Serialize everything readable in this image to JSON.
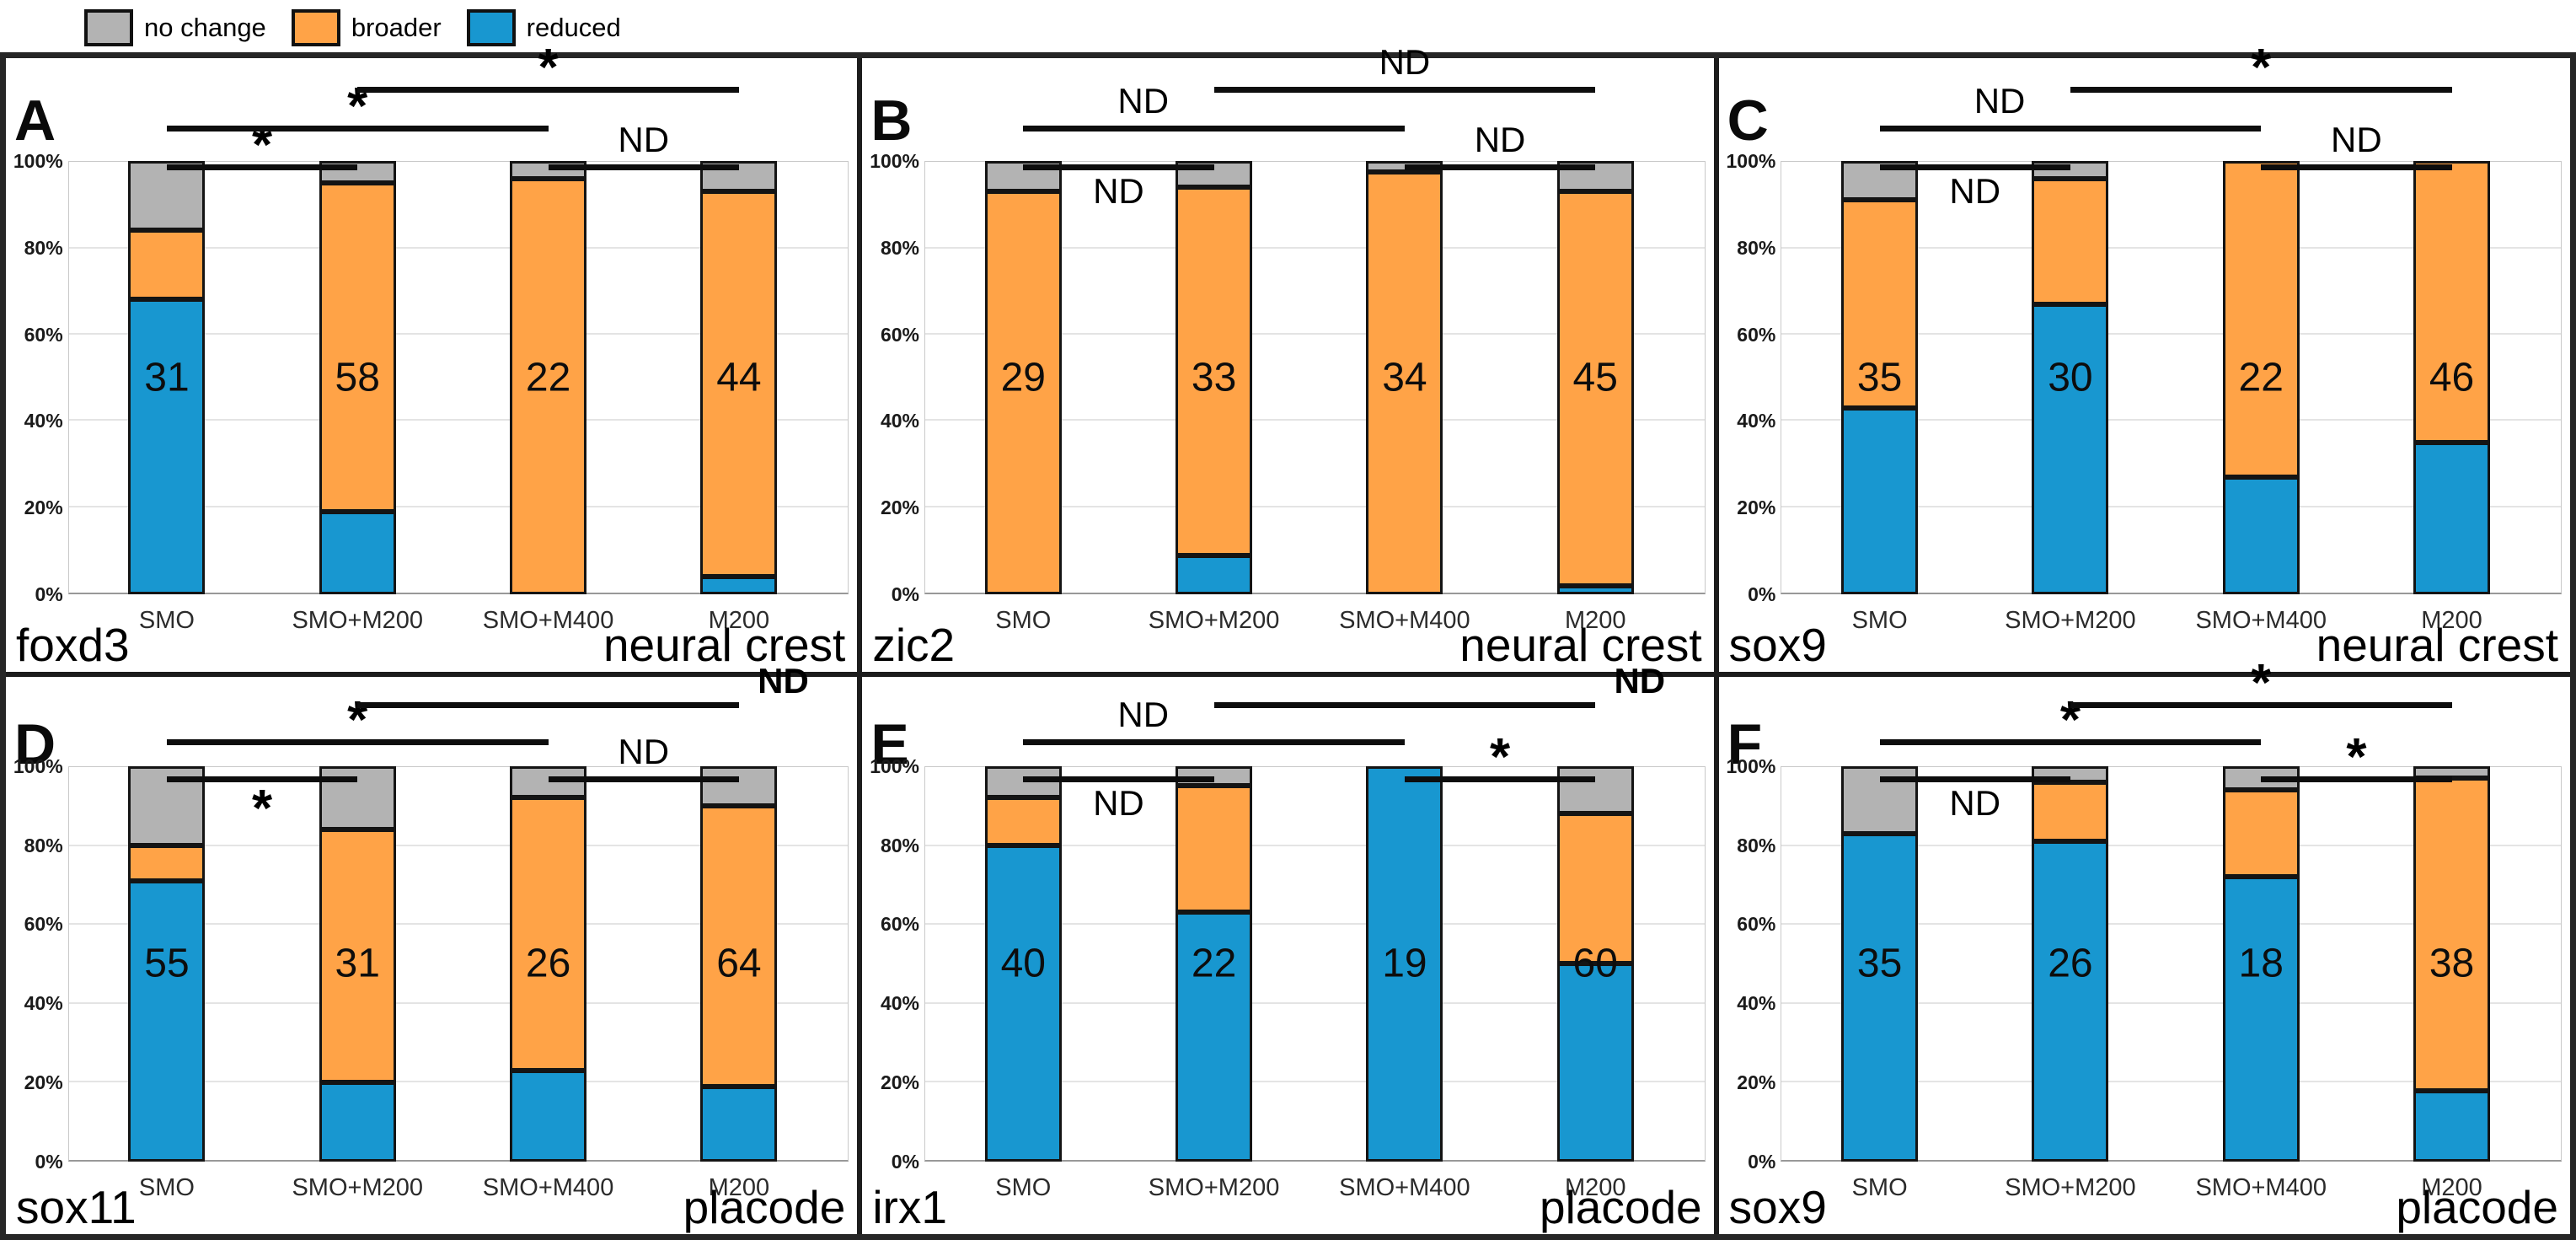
{
  "legend": {
    "items": [
      {
        "key": "no_change",
        "label": "no change"
      },
      {
        "key": "broader",
        "label": "broader"
      },
      {
        "key": "reduced",
        "label": "reduced"
      }
    ]
  },
  "colors": {
    "no_change": "#b3b3b3",
    "broader": "#ffa347",
    "reduced": "#1897d0",
    "bar_border": "#141414",
    "bracket": "#0d0d0d",
    "gridline": "#e4e4e4"
  },
  "y_axis": {
    "ticks": [
      "0%",
      "20%",
      "40%",
      "60%",
      "80%",
      "100%"
    ],
    "min": 0,
    "max": 100,
    "grid": true
  },
  "categories": [
    "SMO",
    "SMO+M200",
    "SMO+M400",
    "M200"
  ],
  "chart_data": [
    {
      "panel": "A",
      "gene": "foxd3",
      "region": "neural crest",
      "type": "bar",
      "stacked": true,
      "unit": "percent",
      "categories": [
        "SMO",
        "SMO+M200",
        "SMO+M400",
        "M200"
      ],
      "sample_sizes": [
        31,
        58,
        22,
        44
      ],
      "series": [
        {
          "key": "reduced",
          "name": "reduced",
          "values": [
            68,
            19,
            0,
            4
          ]
        },
        {
          "key": "broader",
          "name": "broader",
          "values": [
            16,
            76,
            96,
            89
          ]
        },
        {
          "key": "no_change",
          "name": "no change",
          "values": [
            16,
            5,
            4,
            7
          ]
        }
      ],
      "significance": [
        {
          "between": [
            "SMO",
            "SMO+M200"
          ],
          "label": "*",
          "position": "above"
        },
        {
          "between": [
            "SMO",
            "SMO+M400"
          ],
          "label": "*",
          "position": "above"
        },
        {
          "between": [
            "SMO+M400",
            "M200"
          ],
          "label": "ND",
          "position": "above"
        },
        {
          "between": [
            "SMO+M200",
            "M200"
          ],
          "label": "*",
          "position": "above"
        }
      ]
    },
    {
      "panel": "B",
      "gene": "zic2",
      "region": "neural crest",
      "type": "bar",
      "stacked": true,
      "unit": "percent",
      "categories": [
        "SMO",
        "SMO+M200",
        "SMO+M400",
        "M200"
      ],
      "sample_sizes": [
        29,
        33,
        34,
        45
      ],
      "series": [
        {
          "key": "reduced",
          "name": "reduced",
          "values": [
            0,
            9,
            0,
            2
          ]
        },
        {
          "key": "broader",
          "name": "broader",
          "values": [
            93,
            85,
            97.5,
            91
          ]
        },
        {
          "key": "no_change",
          "name": "no change",
          "values": [
            7,
            6,
            2.5,
            7
          ]
        }
      ],
      "significance": [
        {
          "between": [
            "SMO",
            "SMO+M200"
          ],
          "label": "ND",
          "position": "below"
        },
        {
          "between": [
            "SMO",
            "SMO+M400"
          ],
          "label": "ND",
          "position": "above"
        },
        {
          "between": [
            "SMO+M400",
            "M200"
          ],
          "label": "ND",
          "position": "above"
        },
        {
          "between": [
            "SMO+M200",
            "M200"
          ],
          "label": "ND",
          "position": "above"
        }
      ]
    },
    {
      "panel": "C",
      "gene": "sox9",
      "region": "neural crest",
      "type": "bar",
      "stacked": true,
      "unit": "percent",
      "categories": [
        "SMO",
        "SMO+M200",
        "SMO+M400",
        "M200"
      ],
      "sample_sizes": [
        35,
        30,
        22,
        46
      ],
      "series": [
        {
          "key": "reduced",
          "name": "reduced",
          "values": [
            43,
            67,
            27,
            35
          ]
        },
        {
          "key": "broader",
          "name": "broader",
          "values": [
            48,
            29,
            73,
            65
          ]
        },
        {
          "key": "no_change",
          "name": "no change",
          "values": [
            9,
            4,
            0,
            0
          ]
        }
      ],
      "significance": [
        {
          "between": [
            "SMO",
            "SMO+M200"
          ],
          "label": "ND",
          "position": "below"
        },
        {
          "between": [
            "SMO",
            "SMO+M400"
          ],
          "label": "ND",
          "position": "above"
        },
        {
          "between": [
            "SMO+M400",
            "M200"
          ],
          "label": "ND",
          "position": "above"
        },
        {
          "between": [
            "SMO+M200",
            "M200"
          ],
          "label": "*",
          "position": "above"
        }
      ]
    },
    {
      "panel": "D",
      "gene": "sox11",
      "region": "placode",
      "type": "bar",
      "stacked": true,
      "unit": "percent",
      "categories": [
        "SMO",
        "SMO+M200",
        "SMO+M400",
        "M200"
      ],
      "sample_sizes": [
        55,
        31,
        26,
        64
      ],
      "series": [
        {
          "key": "reduced",
          "name": "reduced",
          "values": [
            71,
            20,
            23,
            19
          ]
        },
        {
          "key": "broader",
          "name": "broader",
          "values": [
            9,
            64,
            69,
            71
          ]
        },
        {
          "key": "no_change",
          "name": "no change",
          "values": [
            20,
            16,
            8,
            10
          ]
        }
      ],
      "significance": [
        {
          "between": [
            "SMO",
            "SMO+M200"
          ],
          "label": "*",
          "position": "below"
        },
        {
          "between": [
            "SMO",
            "SMO+M400"
          ],
          "label": "*",
          "position": "above"
        },
        {
          "between": [
            "SMO+M400",
            "M200"
          ],
          "label": "ND",
          "position": "above"
        },
        {
          "between": [
            "SMO+M200",
            "M200"
          ],
          "label": "ND",
          "position": "right"
        }
      ]
    },
    {
      "panel": "E",
      "gene": "irx1",
      "region": "placode",
      "type": "bar",
      "stacked": true,
      "unit": "percent",
      "categories": [
        "SMO",
        "SMO+M200",
        "SMO+M400",
        "M200"
      ],
      "sample_sizes": [
        40,
        22,
        19,
        60
      ],
      "series": [
        {
          "key": "reduced",
          "name": "reduced",
          "values": [
            80,
            63,
            100,
            50
          ]
        },
        {
          "key": "broader",
          "name": "broader",
          "values": [
            12,
            32,
            0,
            38
          ]
        },
        {
          "key": "no_change",
          "name": "no change",
          "values": [
            8,
            5,
            0,
            12
          ]
        }
      ],
      "significance": [
        {
          "between": [
            "SMO",
            "SMO+M200"
          ],
          "label": "ND",
          "position": "below"
        },
        {
          "between": [
            "SMO",
            "SMO+M400"
          ],
          "label": "ND",
          "position": "above"
        },
        {
          "between": [
            "SMO+M400",
            "M200"
          ],
          "label": "*",
          "position": "above"
        },
        {
          "between": [
            "SMO+M200",
            "M200"
          ],
          "label": "ND",
          "position": "right"
        }
      ]
    },
    {
      "panel": "F",
      "gene": "sox9",
      "region": "placode",
      "type": "bar",
      "stacked": true,
      "unit": "percent",
      "categories": [
        "SMO",
        "SMO+M200",
        "SMO+M400",
        "M200"
      ],
      "sample_sizes": [
        35,
        26,
        18,
        38
      ],
      "series": [
        {
          "key": "reduced",
          "name": "reduced",
          "values": [
            83,
            81,
            72,
            18
          ]
        },
        {
          "key": "broader",
          "name": "broader",
          "values": [
            0,
            15,
            22,
            79
          ]
        },
        {
          "key": "no_change",
          "name": "no change",
          "values": [
            17,
            4,
            6,
            3
          ]
        }
      ],
      "significance": [
        {
          "between": [
            "SMO",
            "SMO+M200"
          ],
          "label": "ND",
          "position": "below"
        },
        {
          "between": [
            "SMO",
            "SMO+M400"
          ],
          "label": "*",
          "position": "above"
        },
        {
          "between": [
            "SMO+M400",
            "M200"
          ],
          "label": "*",
          "position": "above"
        },
        {
          "between": [
            "SMO+M200",
            "M200"
          ],
          "label": "*",
          "position": "above"
        }
      ]
    }
  ]
}
